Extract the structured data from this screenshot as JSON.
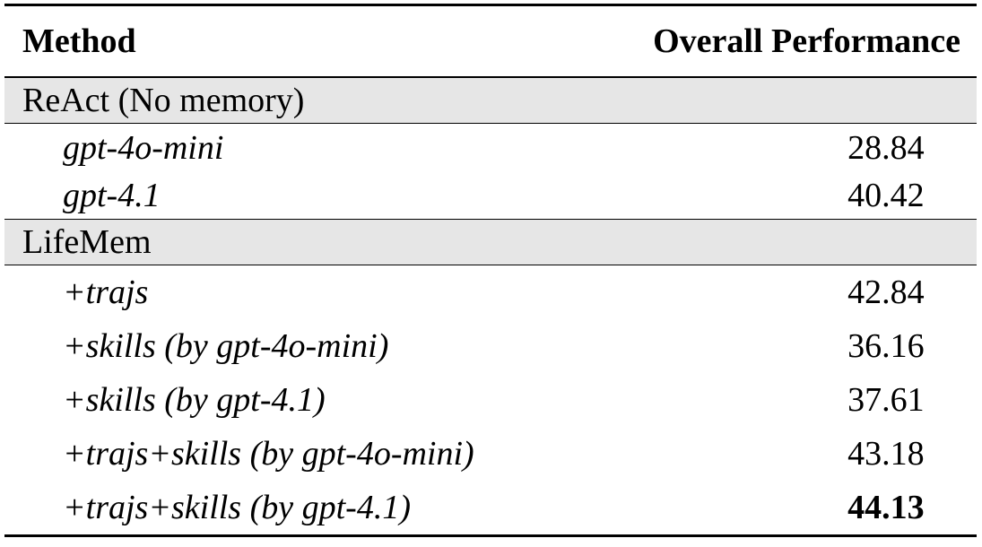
{
  "table": {
    "header": [
      "Method",
      "Overall Performance"
    ],
    "sections": [
      {
        "title": "ReAct (No memory)",
        "rows": [
          {
            "method": "gpt-4o-mini",
            "score": "28.84"
          },
          {
            "method": "gpt-4.1",
            "score": "40.42"
          }
        ]
      },
      {
        "title": "LifeMem",
        "rows": [
          {
            "method": "+trajs",
            "score": "42.84"
          },
          {
            "method": "+skills (by gpt-4o-mini)",
            "score": "36.16"
          },
          {
            "method": "+skills (by gpt-4.1)",
            "score": "37.61"
          },
          {
            "method": "+trajs+skills (by gpt-4o-mini)",
            "score": "43.18"
          },
          {
            "method": "+trajs+skills (by gpt-4.1)",
            "score": "44.13",
            "bold": true
          }
        ]
      }
    ]
  }
}
